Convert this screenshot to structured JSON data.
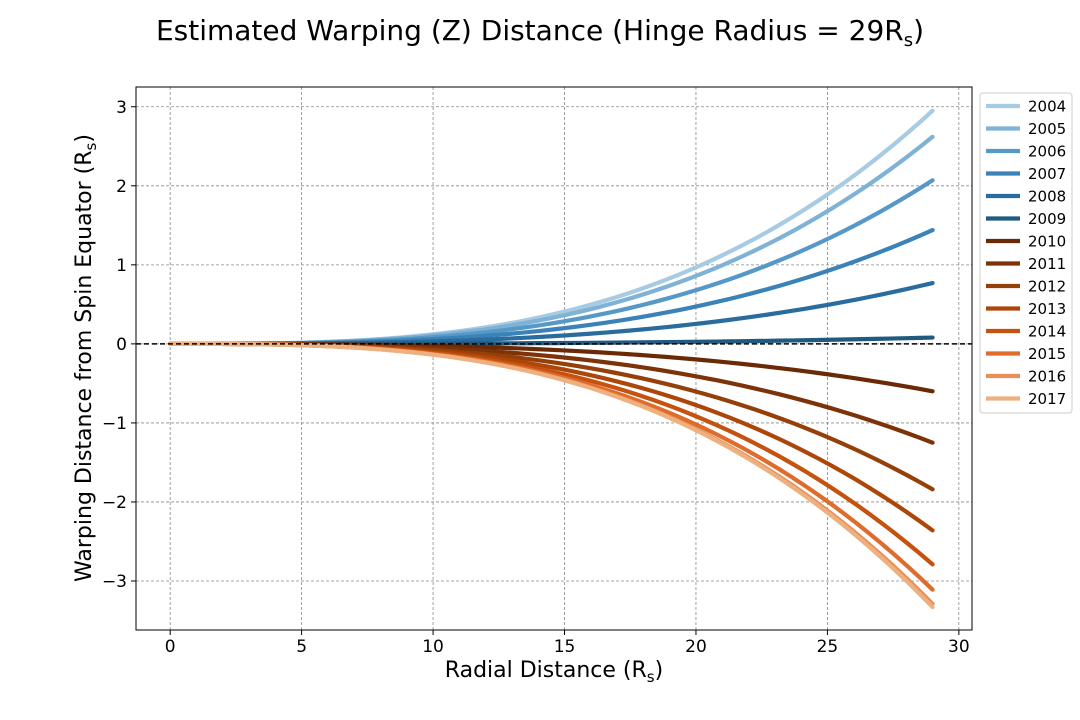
{
  "chart_data": {
    "type": "line",
    "title": "Estimated Warping (Z) Distance (Hinge Radius = 29R",
    "title_sub": "s",
    "title_close": ")",
    "xlabel": "Radial Distance (R",
    "xlabel_sub": "s",
    "xlabel_close": ")",
    "ylabel": "Warping Distance from Spin Equator (R",
    "ylabel_sub": "s",
    "ylabel_close": ")",
    "xlim": [
      -1.3,
      30.5
    ],
    "ylim": [
      -3.62,
      3.25
    ],
    "xticks": [
      0,
      5,
      10,
      15,
      20,
      25,
      30
    ],
    "xtick_labels": [
      "0",
      "5",
      "10",
      "15",
      "20",
      "25",
      "30"
    ],
    "yticks": [
      -3,
      -2,
      -1,
      0,
      1,
      2,
      3
    ],
    "ytick_labels": [
      "−3",
      "−2",
      "−1",
      "0",
      "1",
      "2",
      "3"
    ],
    "grid": true,
    "reference_line_y": 0,
    "legend_position": "outside-right-top",
    "curve_x_range": [
      0,
      29
    ],
    "curve_shape": "z = z_end * (x / 29)^3",
    "series": [
      {
        "name": "2004",
        "end_value": 2.95,
        "color": "#a6cbe3"
      },
      {
        "name": "2005",
        "end_value": 2.62,
        "color": "#7fb2d5"
      },
      {
        "name": "2006",
        "end_value": 2.07,
        "color": "#5698c8"
      },
      {
        "name": "2007",
        "end_value": 1.44,
        "color": "#3a82b8"
      },
      {
        "name": "2008",
        "end_value": 0.77,
        "color": "#2a6c9e"
      },
      {
        "name": "2009",
        "end_value": 0.08,
        "color": "#215a81"
      },
      {
        "name": "2010",
        "end_value": -0.6,
        "color": "#6b2a06"
      },
      {
        "name": "2011",
        "end_value": -1.25,
        "color": "#7d3208"
      },
      {
        "name": "2012",
        "end_value": -1.84,
        "color": "#953f09"
      },
      {
        "name": "2013",
        "end_value": -2.36,
        "color": "#ad4709"
      },
      {
        "name": "2014",
        "end_value": -2.79,
        "color": "#c5520f"
      },
      {
        "name": "2015",
        "end_value": -3.11,
        "color": "#de6d2d"
      },
      {
        "name": "2016",
        "end_value": -3.29,
        "color": "#e88f59"
      },
      {
        "name": "2017",
        "end_value": -3.33,
        "color": "#eeb07e"
      }
    ]
  }
}
